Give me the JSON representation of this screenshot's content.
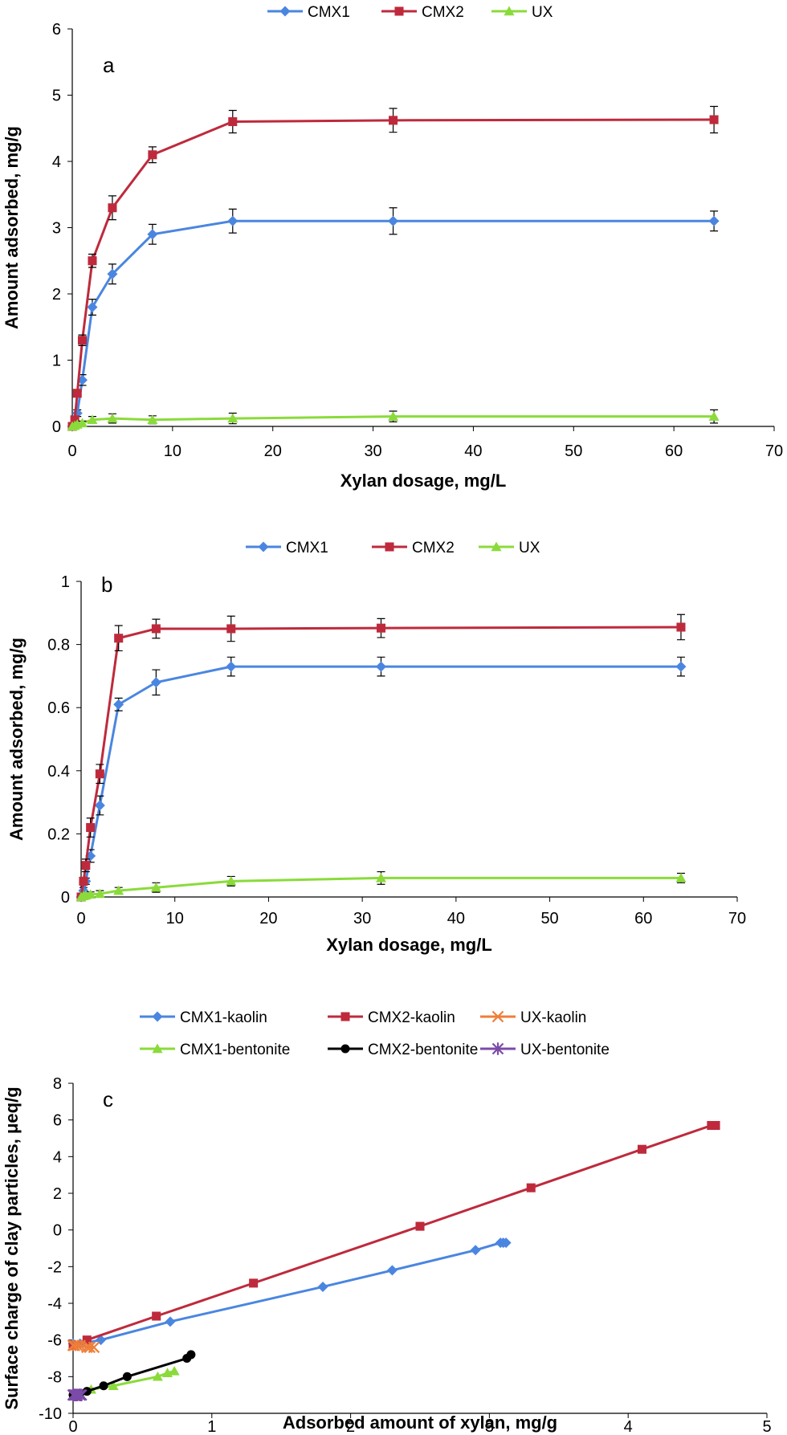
{
  "chart_data": [
    {
      "type": "line",
      "panel_label": "a",
      "xlabel": "Xylan dosage, mg/L",
      "ylabel": "Amount adsorbed, mg/g",
      "xlim": [
        0,
        70
      ],
      "ylim": [
        0,
        6
      ],
      "xticks": [
        0,
        10,
        20,
        30,
        40,
        50,
        60,
        70
      ],
      "yticks": [
        0,
        1,
        2,
        3,
        4,
        5,
        6
      ],
      "yticklabels": [
        "0",
        "1",
        "2",
        "3",
        "4",
        "5",
        "6"
      ],
      "grid": false,
      "legend_position": "top",
      "series": [
        {
          "name": "CMX1",
          "color": "#4A86E0",
          "marker": "diamond",
          "x": [
            0,
            0.25,
            0.5,
            1,
            2,
            4,
            8,
            16,
            32,
            64
          ],
          "y": [
            0,
            0.05,
            0.2,
            0.7,
            1.8,
            2.3,
            2.9,
            3.1,
            3.1,
            3.1
          ],
          "err": [
            0,
            0.03,
            0.05,
            0.08,
            0.12,
            0.15,
            0.15,
            0.18,
            0.2,
            0.15
          ]
        },
        {
          "name": "CMX2",
          "color": "#BE2A3C",
          "marker": "square",
          "x": [
            0,
            0.25,
            0.5,
            1,
            2,
            4,
            8,
            16,
            32,
            64
          ],
          "y": [
            0,
            0.1,
            0.5,
            1.3,
            2.5,
            3.3,
            4.1,
            4.6,
            4.62,
            4.63
          ],
          "err": [
            0,
            0.03,
            0.05,
            0.08,
            0.1,
            0.18,
            0.12,
            0.17,
            0.18,
            0.2
          ]
        },
        {
          "name": "UX",
          "color": "#8ADB3A",
          "marker": "triangle",
          "x": [
            0,
            0.25,
            0.5,
            1,
            2,
            4,
            8,
            16,
            32,
            64
          ],
          "y": [
            0,
            0.01,
            0.03,
            0.05,
            0.1,
            0.12,
            0.1,
            0.12,
            0.15,
            0.15
          ],
          "err": [
            0,
            0.01,
            0.02,
            0.03,
            0.05,
            0.07,
            0.06,
            0.08,
            0.08,
            0.1
          ]
        }
      ]
    },
    {
      "type": "line",
      "panel_label": "b",
      "xlabel": "Xylan dosage, mg/L",
      "ylabel": "Amount adsorbed, mg/g",
      "xlim": [
        0,
        70
      ],
      "ylim": [
        0,
        1
      ],
      "xticks": [
        0,
        10,
        20,
        30,
        40,
        50,
        60,
        70
      ],
      "yticks": [
        0,
        0.2,
        0.4,
        0.6,
        0.8,
        1
      ],
      "yticklabels": [
        "0",
        "0.2",
        "0.4",
        "0.6",
        "0.8",
        "1"
      ],
      "grid": false,
      "legend_position": "top",
      "series": [
        {
          "name": "CMX1",
          "color": "#4A86E0",
          "marker": "diamond",
          "x": [
            0,
            0.25,
            0.5,
            1,
            2,
            4,
            8,
            16,
            32,
            64
          ],
          "y": [
            0,
            0.02,
            0.05,
            0.13,
            0.29,
            0.61,
            0.68,
            0.73,
            0.73,
            0.73
          ],
          "err": [
            0,
            0.01,
            0.01,
            0.02,
            0.03,
            0.02,
            0.04,
            0.03,
            0.03,
            0.03
          ]
        },
        {
          "name": "CMX2",
          "color": "#BE2A3C",
          "marker": "square",
          "x": [
            0,
            0.25,
            0.5,
            1,
            2,
            4,
            8,
            16,
            32,
            64
          ],
          "y": [
            0,
            0.05,
            0.1,
            0.22,
            0.39,
            0.82,
            0.85,
            0.85,
            0.852,
            0.855
          ],
          "err": [
            0,
            0.01,
            0.02,
            0.03,
            0.03,
            0.04,
            0.03,
            0.04,
            0.03,
            0.04
          ]
        },
        {
          "name": "UX",
          "color": "#8ADB3A",
          "marker": "triangle",
          "x": [
            0,
            0.25,
            0.5,
            1,
            2,
            4,
            8,
            16,
            32,
            64
          ],
          "y": [
            0,
            0.003,
            0.005,
            0.008,
            0.01,
            0.02,
            0.03,
            0.05,
            0.06,
            0.06
          ],
          "err": [
            0,
            0.005,
            0.005,
            0.008,
            0.01,
            0.01,
            0.015,
            0.015,
            0.02,
            0.015
          ]
        }
      ]
    },
    {
      "type": "line",
      "panel_label": "c",
      "xlabel": "Adsorbed amount of xylan, mg/g",
      "ylabel": "Surface charge of clay particles, μeq/g",
      "xlim": [
        0,
        5
      ],
      "ylim": [
        -10,
        8
      ],
      "xticks": [
        0,
        1,
        2,
        3,
        4,
        5
      ],
      "yticks": [
        -10,
        -8,
        -6,
        -4,
        -2,
        0,
        2,
        4,
        6,
        8
      ],
      "yticklabels": [
        "-10",
        "-8",
        "-6",
        "-4",
        "-2",
        "0",
        "2",
        "4",
        "6",
        "8"
      ],
      "grid": false,
      "legend_position": "top",
      "series": [
        {
          "name": "CMX1-kaolin",
          "color": "#4A86E0",
          "marker": "diamond",
          "x": [
            0,
            0.05,
            0.2,
            0.7,
            1.8,
            2.3,
            2.9,
            3.08,
            3.1,
            3.12
          ],
          "y": [
            -6.2,
            -6.2,
            -6.0,
            -5.0,
            -3.1,
            -2.2,
            -1.1,
            -0.7,
            -0.7,
            -0.7
          ]
        },
        {
          "name": "CMX2-kaolin",
          "color": "#BE2A3C",
          "marker": "square",
          "x": [
            0,
            0.1,
            0.6,
            1.3,
            2.5,
            3.3,
            4.1,
            4.6,
            4.63
          ],
          "y": [
            -6.3,
            -6.0,
            -4.7,
            -2.9,
            0.2,
            2.3,
            4.4,
            5.7,
            5.7
          ]
        },
        {
          "name": "UX-kaolin",
          "color": "#EE7E3A",
          "marker": "x",
          "x": [
            0,
            0.01,
            0.03,
            0.05,
            0.1,
            0.12,
            0.15
          ],
          "y": [
            -6.3,
            -6.3,
            -6.3,
            -6.3,
            -6.4,
            -6.4,
            -6.4
          ]
        },
        {
          "name": "CMX1-bentonite",
          "color": "#8ADB3A",
          "marker": "triangle",
          "x": [
            0,
            0.02,
            0.05,
            0.13,
            0.29,
            0.61,
            0.68,
            0.73
          ],
          "y": [
            -9.0,
            -9.0,
            -8.9,
            -8.7,
            -8.5,
            -8.0,
            -7.8,
            -7.7
          ]
        },
        {
          "name": "CMX2-bentonite",
          "color": "#000000",
          "marker": "circle",
          "x": [
            0,
            0.05,
            0.1,
            0.22,
            0.39,
            0.82,
            0.85
          ],
          "y": [
            -9.0,
            -8.9,
            -8.8,
            -8.5,
            -8.0,
            -7.0,
            -6.8
          ]
        },
        {
          "name": "UX-bentonite",
          "color": "#7C4AA8",
          "marker": "star",
          "x": [
            0,
            0.005,
            0.01,
            0.02,
            0.03,
            0.05,
            0.06
          ],
          "y": [
            -9.0,
            -9.0,
            -9.0,
            -9.0,
            -9.0,
            -9.0,
            -9.0
          ]
        }
      ]
    }
  ]
}
